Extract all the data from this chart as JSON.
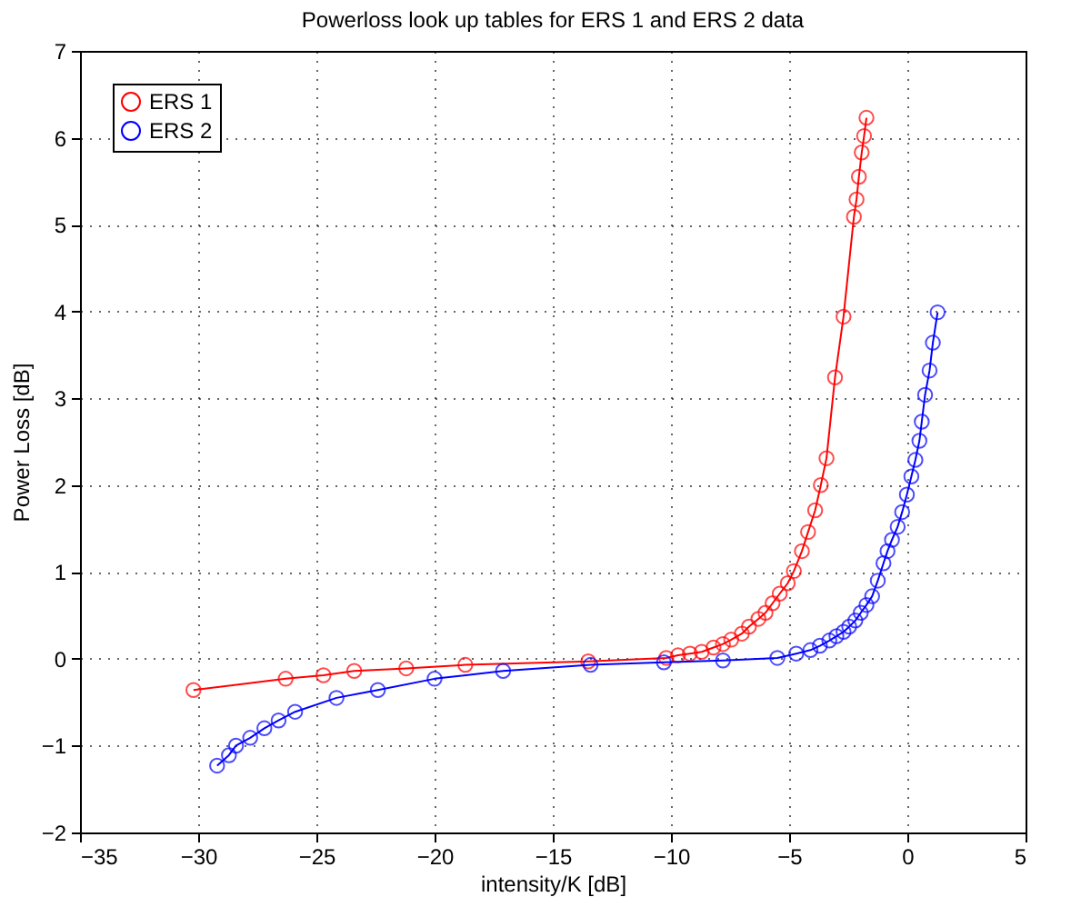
{
  "chart_data": {
    "type": "line",
    "title": "Powerloss look up tables for ERS 1 and ERS 2 data",
    "xlabel": "intensity/K [dB]",
    "ylabel": "Power Loss [dB]",
    "xlim": [
      -35,
      5
    ],
    "xticks": [
      -35,
      -30,
      -25,
      -20,
      -15,
      -10,
      -5,
      0,
      5
    ],
    "ylim": [
      -2,
      7
    ],
    "yticks": [
      -2,
      -1,
      0,
      1,
      2,
      3,
      4,
      5,
      6,
      7
    ],
    "grid": true,
    "legend": "top left",
    "marker": "circle",
    "line_style": "solid",
    "series": [
      {
        "name": "ERS 1",
        "color": "#ff0000",
        "x": [
          -30.2,
          -26.3,
          -24.7,
          -23.4,
          -21.2,
          -18.7,
          -13.5,
          -10.2,
          -9.7,
          -9.2,
          -8.7,
          -8.2,
          -7.8,
          -7.45,
          -7.0,
          -6.7,
          -6.3,
          -6.0,
          -5.7,
          -5.4,
          -5.06,
          -4.8,
          -4.46,
          -4.2,
          -3.9,
          -3.66,
          -3.42,
          -3.06,
          -2.7,
          -2.26,
          -2.15,
          -2.05,
          -1.93,
          -1.83,
          -1.73
        ],
        "values": [
          -0.36,
          -0.23,
          -0.19,
          -0.14,
          -0.11,
          -0.07,
          -0.03,
          0.01,
          0.04,
          0.06,
          0.08,
          0.13,
          0.17,
          0.22,
          0.29,
          0.37,
          0.46,
          0.53,
          0.64,
          0.75,
          0.87,
          1.01,
          1.24,
          1.46,
          1.71,
          2.0,
          2.31,
          3.24,
          3.94,
          5.09,
          5.29,
          5.55,
          5.83,
          6.02,
          6.23
        ]
      },
      {
        "name": "ERS 2",
        "color": "#0000ff",
        "x": [
          -29.2,
          -28.7,
          -28.4,
          -27.8,
          -27.2,
          -26.6,
          -25.9,
          -24.15,
          -22.4,
          -20.0,
          -17.1,
          -13.4,
          -10.3,
          -7.8,
          -5.5,
          -4.7,
          -4.1,
          -3.7,
          -3.3,
          -3.0,
          -2.7,
          -2.46,
          -2.2,
          -1.97,
          -1.73,
          -1.49,
          -1.25,
          -1.01,
          -0.84,
          -0.65,
          -0.41,
          -0.22,
          -0.02,
          0.17,
          0.34,
          0.51,
          0.61,
          0.75,
          0.94,
          1.08,
          1.28
        ],
        "values": [
          -1.23,
          -1.11,
          -1.0,
          -0.91,
          -0.8,
          -0.71,
          -0.61,
          -0.45,
          -0.36,
          -0.23,
          -0.14,
          -0.07,
          -0.04,
          -0.02,
          0.01,
          0.06,
          0.1,
          0.15,
          0.21,
          0.26,
          0.31,
          0.37,
          0.44,
          0.53,
          0.62,
          0.72,
          0.9,
          1.1,
          1.24,
          1.37,
          1.52,
          1.69,
          1.89,
          2.1,
          2.29,
          2.51,
          2.73,
          3.04,
          3.32,
          3.64,
          3.99
        ]
      }
    ]
  }
}
